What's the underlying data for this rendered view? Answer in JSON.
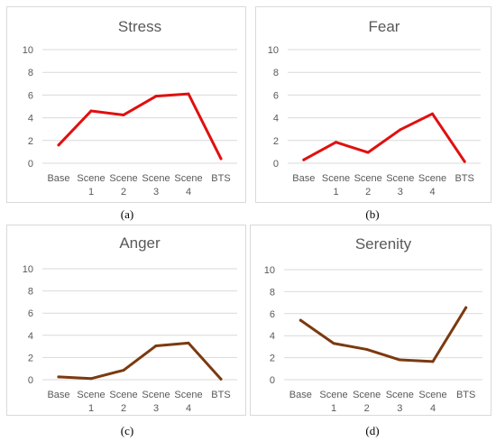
{
  "chart_data": [
    {
      "type": "line",
      "title": "Stress",
      "caption": "(a)",
      "categories": [
        [
          "Base"
        ],
        [
          "Scene",
          "1"
        ],
        [
          "Scene",
          "2"
        ],
        [
          "Scene",
          "3"
        ],
        [
          "Scene",
          "4"
        ],
        [
          "BTS"
        ]
      ],
      "values": [
        1.6,
        4.6,
        4.25,
        5.9,
        6.1,
        0.4
      ],
      "ylim": [
        0,
        10
      ],
      "yticks": [
        "0",
        "2",
        "4",
        "6",
        "8",
        "10"
      ],
      "grid": true,
      "color": "#e01010"
    },
    {
      "type": "line",
      "title": "Fear",
      "caption": "(b)",
      "categories": [
        [
          "Base"
        ],
        [
          "Scene",
          "1"
        ],
        [
          "Scene",
          "2"
        ],
        [
          "Scene",
          "3"
        ],
        [
          "Scene",
          "4"
        ],
        [
          "BTS"
        ]
      ],
      "values": [
        0.3,
        1.85,
        0.95,
        2.95,
        4.35,
        0.15
      ],
      "ylim": [
        0,
        10
      ],
      "yticks": [
        "0",
        "2",
        "4",
        "6",
        "8",
        "10"
      ],
      "grid": true,
      "color": "#e01010"
    },
    {
      "type": "line",
      "title": "Anger",
      "caption": "(c)",
      "categories": [
        [
          "Base"
        ],
        [
          "Scene",
          "1"
        ],
        [
          "Scene",
          "2"
        ],
        [
          "Scene",
          "3"
        ],
        [
          "Scene",
          "4"
        ],
        [
          "BTS"
        ]
      ],
      "values": [
        0.25,
        0.1,
        0.85,
        3.05,
        3.3,
        0.05
      ],
      "ylim": [
        0,
        10
      ],
      "yticks": [
        "0",
        "2",
        "4",
        "6",
        "8",
        "10"
      ],
      "grid": true,
      "color": "#7b3a10"
    },
    {
      "type": "line",
      "title": "Serenity",
      "caption": "(d)",
      "categories": [
        [
          "Base"
        ],
        [
          "Scene",
          "1"
        ],
        [
          "Scene",
          "2"
        ],
        [
          "Scene",
          "3"
        ],
        [
          "Scene",
          "4"
        ],
        [
          "BTS"
        ]
      ],
      "values": [
        5.4,
        3.3,
        2.75,
        1.8,
        1.65,
        6.55
      ],
      "ylim": [
        0,
        10
      ],
      "yticks": [
        "0",
        "2",
        "4",
        "6",
        "8",
        "10"
      ],
      "grid": true,
      "color": "#7b3a10"
    }
  ]
}
